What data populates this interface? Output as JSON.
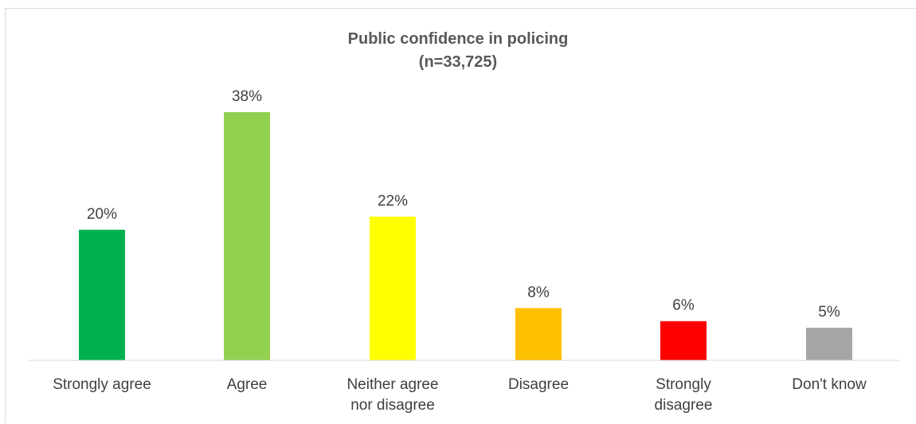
{
  "chart_data": {
    "type": "bar",
    "title": "Public confidence in policing",
    "subtitle": "(n=33,725)",
    "categories": [
      [
        "Strongly agree"
      ],
      [
        "Agree"
      ],
      [
        "Neither agree",
        "nor disagree"
      ],
      [
        "Disagree"
      ],
      [
        "Strongly",
        "disagree"
      ],
      [
        "Don't know"
      ]
    ],
    "values": [
      20,
      38,
      22,
      8,
      6,
      5
    ],
    "value_labels": [
      "20%",
      "38%",
      "22%",
      "8%",
      "6%",
      "5%"
    ],
    "colors": [
      "#00b050",
      "#92d050",
      "#ffff00",
      "#ffc000",
      "#ff0000",
      "#a6a6a6"
    ],
    "ylim": [
      0,
      38
    ],
    "xlabel": "",
    "ylabel": "",
    "grid": false,
    "legend": "none"
  }
}
